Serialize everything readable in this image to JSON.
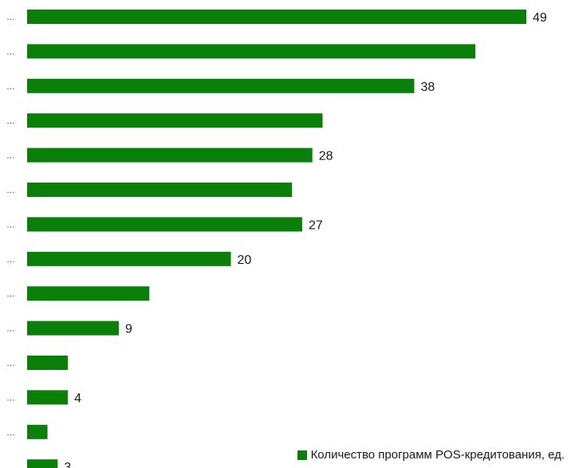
{
  "chart_data": {
    "type": "bar",
    "orientation": "horizontal",
    "categories": [
      "…",
      "…",
      "…",
      "…",
      "…",
      "…",
      "…",
      "…",
      "…",
      "…",
      "…",
      "…",
      "…",
      "…"
    ],
    "series": [
      {
        "name": "Количество программ POS-кредитования, ед.",
        "color": "#0a800a",
        "values": [
          49,
          44,
          38,
          29,
          28,
          26,
          27,
          20,
          12,
          9,
          4,
          4,
          2,
          3
        ],
        "value_labels": [
          "49",
          "",
          "38",
          "",
          "28",
          "",
          "27",
          "20",
          "",
          "9",
          "",
          "4",
          "",
          "3"
        ]
      }
    ],
    "xlim": [
      0,
      49
    ],
    "grid": false,
    "legend_position": "bottom-right"
  }
}
